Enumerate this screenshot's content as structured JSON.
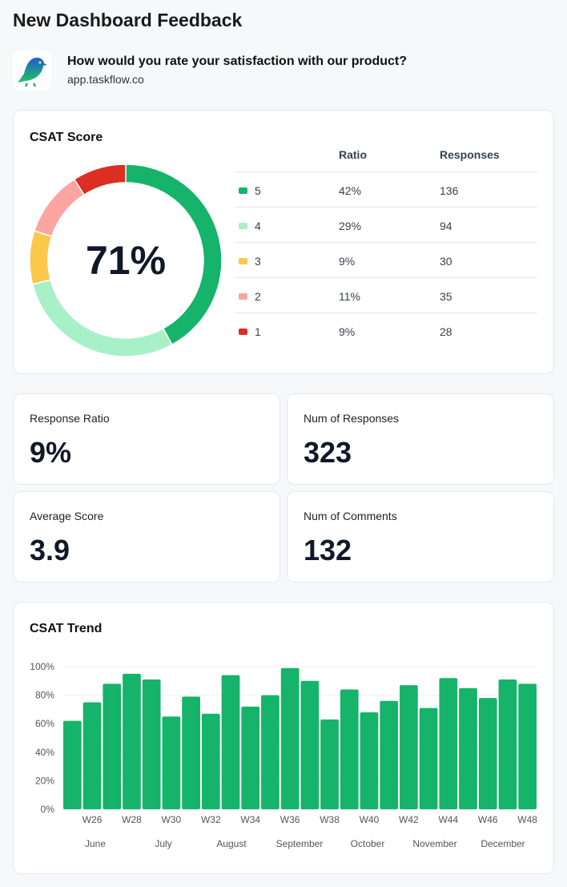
{
  "title": "New Dashboard Feedback",
  "survey": {
    "question": "How would you rate your satisfaction with our product?",
    "site": "app.taskflow.co",
    "logo_icon": "bird-logo"
  },
  "csat": {
    "title": "CSAT Score",
    "score": "71%",
    "headers": {
      "ratio": "Ratio",
      "responses": "Responses"
    },
    "rows": [
      {
        "label": "5",
        "ratio": "42%",
        "responses": "136",
        "color": "#16b36a",
        "value": 42
      },
      {
        "label": "4",
        "ratio": "29%",
        "responses": "94",
        "color": "#a8f0c8",
        "value": 29
      },
      {
        "label": "3",
        "ratio": "9%",
        "responses": "30",
        "color": "#fcc84a",
        "value": 9
      },
      {
        "label": "2",
        "ratio": "11%",
        "responses": "35",
        "color": "#fca5a0",
        "value": 11
      },
      {
        "label": "1",
        "ratio": "9%",
        "responses": "28",
        "color": "#dc2f22",
        "value": 9
      }
    ]
  },
  "kpis": [
    {
      "label": "Response Ratio",
      "value": "9%"
    },
    {
      "label": "Num of Responses",
      "value": "323"
    },
    {
      "label": "Average Score",
      "value": "3.9"
    },
    {
      "label": "Num of Comments",
      "value": "132"
    }
  ],
  "chart_data": {
    "type": "bar",
    "title": "CSAT Trend",
    "color": "#16b36a",
    "ylim": [
      0,
      100
    ],
    "yticks": [
      "0%",
      "20%",
      "40%",
      "60%",
      "80%",
      "100%"
    ],
    "categories": [
      "W25",
      "W26",
      "W27",
      "W28",
      "W29",
      "W30",
      "W31",
      "W32",
      "W33",
      "W34",
      "W35",
      "W36",
      "W37",
      "W38",
      "W39",
      "W40",
      "W41",
      "W42",
      "W43",
      "W44",
      "W45",
      "W46",
      "W47",
      "W48"
    ],
    "values": [
      62,
      75,
      88,
      95,
      91,
      65,
      79,
      67,
      94,
      72,
      80,
      99,
      90,
      63,
      84,
      68,
      76,
      87,
      71,
      92,
      85,
      78,
      91,
      88
    ],
    "xtick_labels": [
      "W26",
      "W28",
      "W30",
      "W32",
      "W34",
      "W36",
      "W38",
      "W40",
      "W42",
      "W44",
      "W46",
      "W48"
    ],
    "months": [
      "June",
      "July",
      "August",
      "September",
      "October",
      "November",
      "December"
    ],
    "grid": true
  }
}
